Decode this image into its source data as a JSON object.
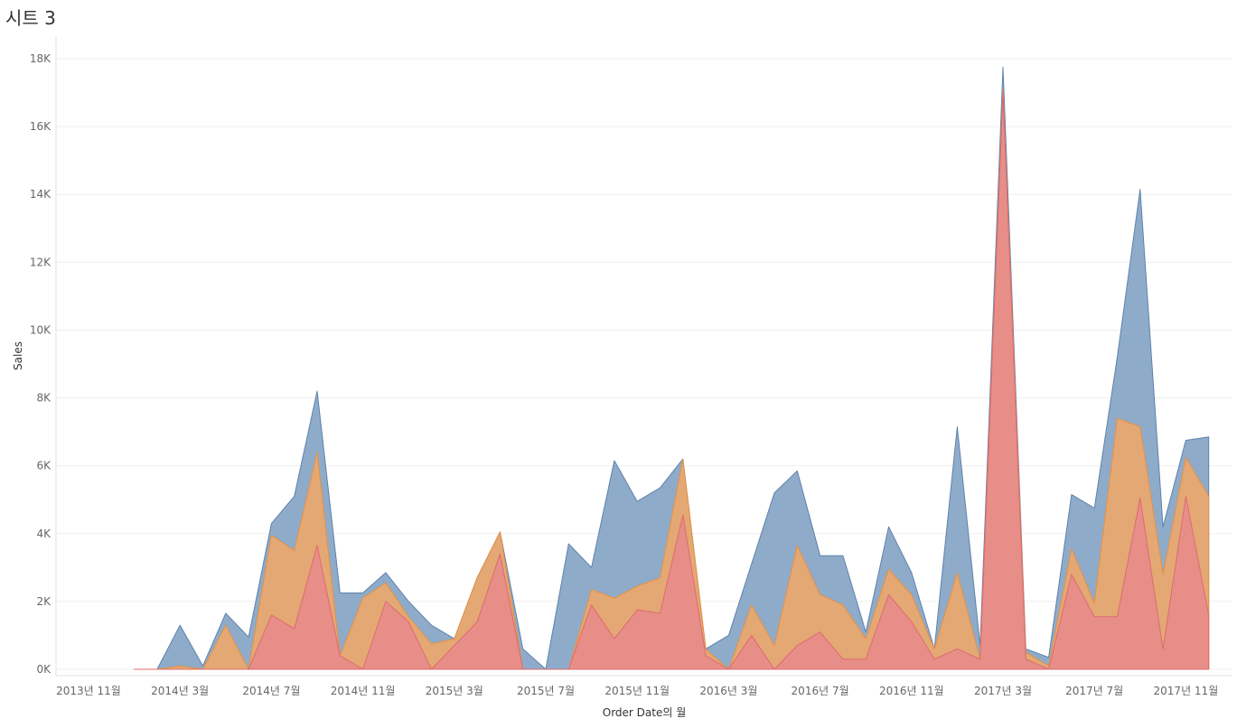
{
  "sheet": {
    "title": "시트 3"
  },
  "chart_data": {
    "type": "area",
    "stacked": true,
    "xlabel": "Order Date의 월",
    "ylabel": "Sales",
    "ylim": [
      0,
      18500
    ],
    "y_ticks": [
      0,
      2000,
      4000,
      6000,
      8000,
      10000,
      12000,
      14000,
      16000,
      18000
    ],
    "y_tick_labels": [
      "0K",
      "2K",
      "4K",
      "6K",
      "8K",
      "10K",
      "12K",
      "14K",
      "16K",
      "18K"
    ],
    "x_tick_labels": [
      "2013년 11월",
      "2014년 3월",
      "2014년 7월",
      "2014년 11월",
      "2015년 3월",
      "2015년 7월",
      "2015년 11월",
      "2016년 3월",
      "2016년 7월",
      "2016년 11월",
      "2017년 3월",
      "2017년 7월",
      "2017년 11월"
    ],
    "x_tick_start": "2013-11",
    "x_tick_step_months": 4,
    "grid": true,
    "legend": "none",
    "x": [
      "2014-01",
      "2014-02",
      "2014-03",
      "2014-04",
      "2014-05",
      "2014-06",
      "2014-07",
      "2014-08",
      "2014-09",
      "2014-10",
      "2014-11",
      "2014-12",
      "2015-01",
      "2015-02",
      "2015-03",
      "2015-04",
      "2015-05",
      "2015-06",
      "2015-07",
      "2015-08",
      "2015-09",
      "2015-10",
      "2015-11",
      "2015-12",
      "2016-01",
      "2016-02",
      "2016-03",
      "2016-04",
      "2016-05",
      "2016-06",
      "2016-07",
      "2016-08",
      "2016-09",
      "2016-10",
      "2016-11",
      "2016-12",
      "2017-01",
      "2017-02",
      "2017-03",
      "2017-04",
      "2017-05",
      "2017-06",
      "2017-07",
      "2017-08",
      "2017-09",
      "2017-10",
      "2017-11",
      "2017-12"
    ],
    "series": [
      {
        "color": "#e8898c",
        "values": [
          0,
          0,
          0,
          0,
          0,
          0,
          1600,
          1200,
          3650,
          400,
          0,
          2000,
          1400,
          0,
          700,
          1400,
          3400,
          0,
          0,
          0,
          1900,
          900,
          1750,
          1650,
          4550,
          400,
          0,
          1000,
          0,
          700,
          1100,
          300,
          300,
          2200,
          1400,
          300,
          600,
          300,
          17000,
          300,
          0,
          2800,
          1550,
          1550,
          5050,
          600,
          5100,
          1600
        ]
      },
      {
        "color": "#f3a765",
        "values": [
          0,
          0,
          100,
          0,
          1300,
          0,
          2350,
          2300,
          2750,
          0,
          2100,
          550,
          150,
          750,
          200,
          1300,
          650,
          0,
          0,
          0,
          450,
          1200,
          700,
          1050,
          1650,
          200,
          0,
          900,
          700,
          2950,
          1100,
          1600,
          600,
          750,
          800,
          300,
          2250,
          0,
          100,
          200,
          100,
          750,
          400,
          5850,
          2100,
          2200,
          1150,
          3500
        ]
      },
      {
        "color": "#7b9cc1",
        "values": [
          0,
          0,
          1200,
          100,
          350,
          950,
          350,
          1600,
          1800,
          1850,
          150,
          300,
          450,
          550,
          0,
          0,
          0,
          600,
          0,
          3700,
          650,
          4050,
          2500,
          2650,
          0,
          0,
          1000,
          1200,
          4500,
          2200,
          1150,
          1450,
          200,
          1250,
          650,
          0,
          4300,
          400,
          650,
          100,
          250,
          1600,
          2800,
          1800,
          7000,
          1400,
          500,
          1750
        ]
      }
    ]
  }
}
